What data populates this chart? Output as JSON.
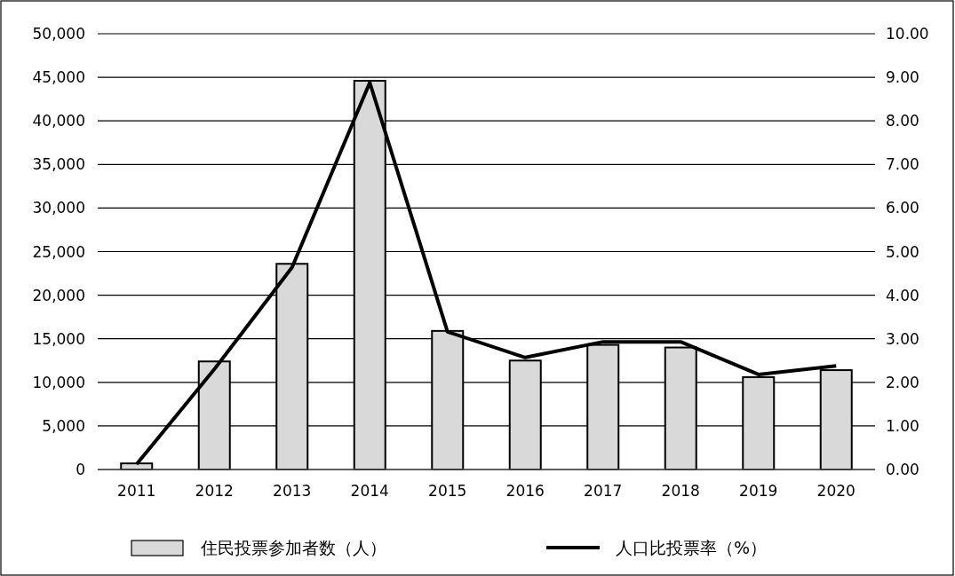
{
  "chart_data": {
    "type": "bar",
    "categories": [
      "2011",
      "2012",
      "2013",
      "2014",
      "2015",
      "2016",
      "2017",
      "2018",
      "2019",
      "2020"
    ],
    "series": [
      {
        "name": "住民投票参加者数（人）",
        "color": "#d9d9d9",
        "values": [
          700,
          12400,
          23600,
          44600,
          15900,
          12500,
          14300,
          14000,
          10600,
          11400
        ]
      },
      {
        "name": "人口比投票率（%）",
        "type": "line",
        "axis": "y2",
        "color": "#000000",
        "values": [
          0.12,
          2.3,
          4.64,
          8.88,
          3.16,
          2.57,
          2.93,
          2.93,
          2.18,
          2.38
        ]
      }
    ],
    "ylim": [
      0,
      50000
    ],
    "yticks": [
      0,
      {
        "value": 5000,
        "label": "5,000"
      },
      {
        "value": 10000,
        "label": "10,000"
      },
      {
        "value": 15000,
        "label": "15,000"
      },
      {
        "value": 20000,
        "label": "20,000"
      },
      {
        "value": 25000,
        "label": "25,000"
      },
      {
        "value": 30000,
        "label": "30,000"
      },
      {
        "value": 35000,
        "label": "35,000"
      },
      {
        "value": 40000,
        "label": "40,000"
      },
      {
        "value": 45000,
        "label": "45,000"
      },
      {
        "value": 50000,
        "label": "50,000"
      }
    ],
    "y2lim": [
      0,
      10
    ],
    "y2ticks": [
      {
        "value": 0,
        "label": "0.00"
      },
      {
        "value": 1,
        "label": "1.00"
      },
      {
        "value": 2,
        "label": "2.00"
      },
      {
        "value": 3,
        "label": "3.00"
      },
      {
        "value": 4,
        "label": "4.00"
      },
      {
        "value": 5,
        "label": "5.00"
      },
      {
        "value": 6,
        "label": "6.00"
      },
      {
        "value": 7,
        "label": "7.00"
      },
      {
        "value": 8,
        "label": "8.00"
      },
      {
        "value": 9,
        "label": "9.00"
      },
      {
        "value": 10,
        "label": "10.00"
      }
    ],
    "grid": "y",
    "legend": "bottom",
    "marker": "none",
    "line_style": "solid"
  }
}
